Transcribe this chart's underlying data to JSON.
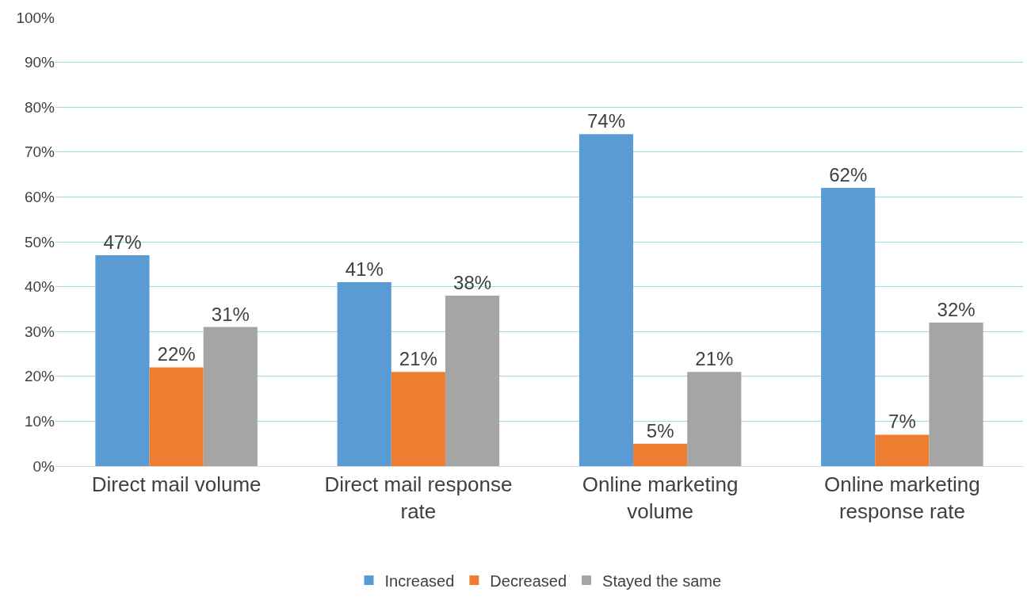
{
  "chart_data": {
    "type": "bar",
    "categories": [
      "Direct mail volume",
      "Direct mail response rate",
      "Online marketing volume",
      "Online marketing response rate"
    ],
    "series": [
      {
        "name": "Increased",
        "color": "#5b9bd5",
        "values": [
          47,
          41,
          74,
          62
        ],
        "value_labels": [
          "47%",
          "41%",
          "74%",
          "62%"
        ]
      },
      {
        "name": "Decreased",
        "color": "#ed7d31",
        "values": [
          22,
          21,
          5,
          7
        ],
        "value_labels": [
          "22%",
          "21%",
          "5%",
          "7%"
        ]
      },
      {
        "name": "Stayed the same",
        "color": "#a5a5a5",
        "values": [
          31,
          38,
          21,
          32
        ],
        "value_labels": [
          "31%",
          "38%",
          "21%",
          "32%"
        ]
      }
    ],
    "ylim": [
      0,
      100
    ],
    "yticks": [
      {
        "value": 0,
        "label": "0%"
      },
      {
        "value": 10,
        "label": "10%"
      },
      {
        "value": 20,
        "label": "20%"
      },
      {
        "value": 30,
        "label": "30%"
      },
      {
        "value": 40,
        "label": "40%"
      },
      {
        "value": 50,
        "label": "50%"
      },
      {
        "value": 60,
        "label": "60%"
      },
      {
        "value": 70,
        "label": "70%"
      },
      {
        "value": 80,
        "label": "80%"
      },
      {
        "value": 90,
        "label": "90%"
      },
      {
        "value": 100,
        "label": "100%"
      }
    ],
    "grid": "y",
    "legend": "bottom"
  }
}
